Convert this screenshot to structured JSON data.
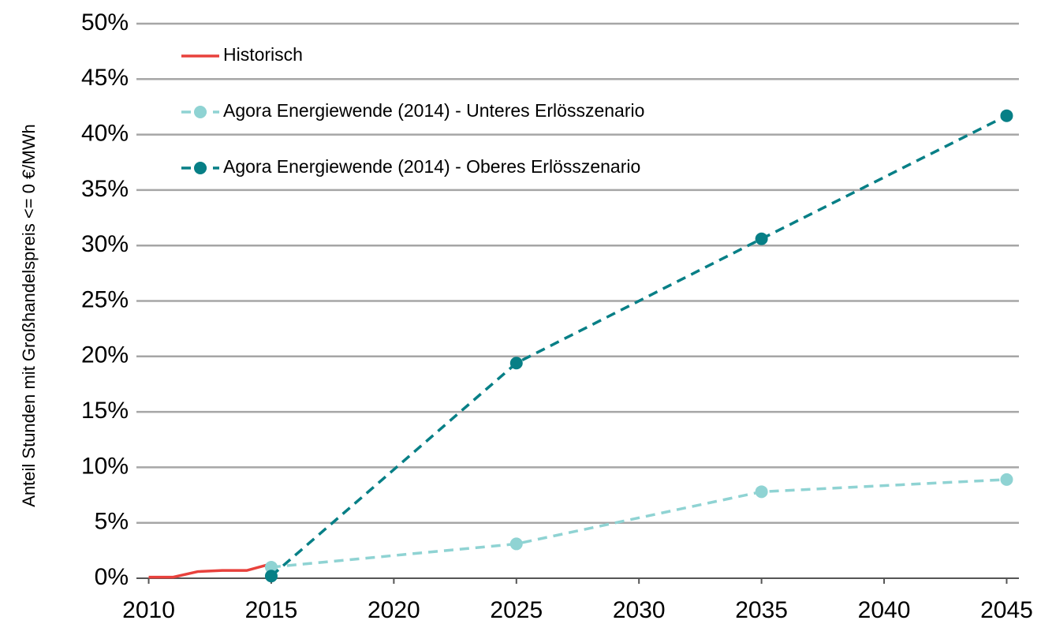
{
  "chart_data": {
    "type": "line",
    "y_label": "Anteil Stunden mit Großhandelspreis <= 0 €/MWh",
    "series": [
      {
        "name": "Historisch",
        "color": "#e8413c",
        "style": "solid",
        "markers": false,
        "x": [
          2010,
          2011,
          2012,
          2013,
          2014,
          2015
        ],
        "values": [
          0.1,
          0.1,
          0.6,
          0.7,
          0.7,
          1.3
        ]
      },
      {
        "name": "Agora Energiewende (2014) - Unteres Erlösszenario",
        "color": "#8fd3d3",
        "style": "dashed",
        "markers": true,
        "x": [
          2015,
          2025,
          2035,
          2045
        ],
        "values": [
          1.0,
          3.1,
          7.8,
          8.9
        ]
      },
      {
        "name": "Agora Energiewende (2014) - Oberes Erlösszenario",
        "color": "#077f86",
        "style": "dashed",
        "markers": true,
        "x": [
          2015,
          2025,
          2035,
          2045
        ],
        "values": [
          0.2,
          19.4,
          30.6,
          41.7
        ]
      }
    ],
    "xlim": [
      2009.5,
      2045.5
    ],
    "xticks": [
      2010,
      2015,
      2020,
      2025,
      2030,
      2035,
      2040,
      2045
    ],
    "ylim": [
      0,
      50
    ],
    "yticks": [
      {
        "value": 0,
        "label": "0%"
      },
      {
        "value": 5,
        "label": "5%"
      },
      {
        "value": 10,
        "label": "10%"
      },
      {
        "value": 15,
        "label": "15%"
      },
      {
        "value": 20,
        "label": "20%"
      },
      {
        "value": 25,
        "label": "25%"
      },
      {
        "value": 30,
        "label": "30%"
      },
      {
        "value": 35,
        "label": "35%"
      },
      {
        "value": 40,
        "label": "40%"
      },
      {
        "value": 45,
        "label": "45%"
      },
      {
        "value": 50,
        "label": "50%"
      }
    ],
    "grid": true,
    "legend": "top-left"
  }
}
